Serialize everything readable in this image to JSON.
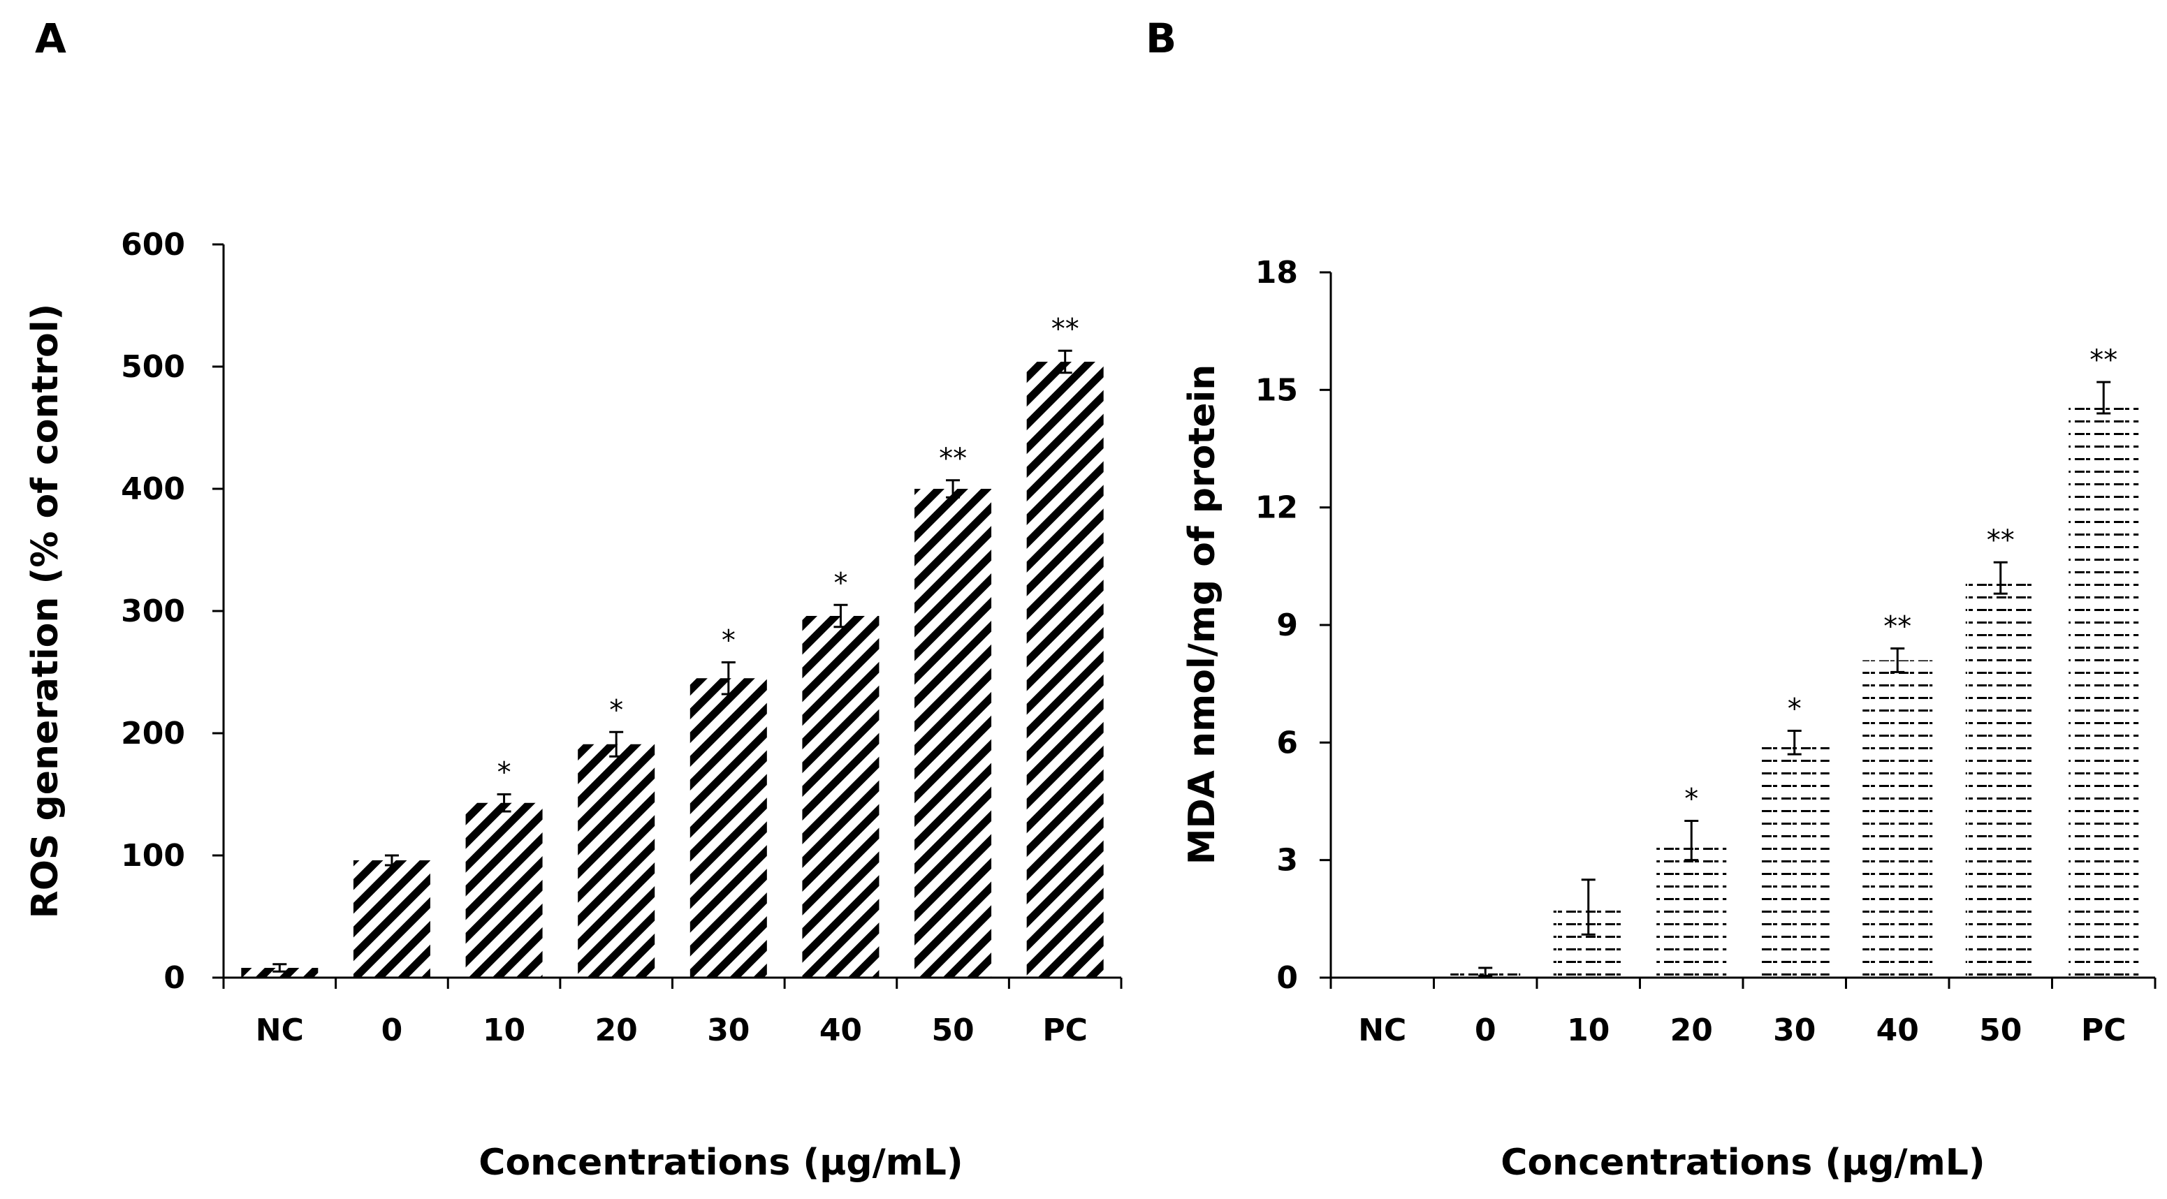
{
  "chart_data": [
    {
      "id": "A",
      "panel_label": "A",
      "type": "bar",
      "pattern": "diagonal",
      "title": "",
      "xlabel": "Concentrations (μg/mL)",
      "ylabel": "ROS generation (% of control)",
      "ylim": [
        0,
        600
      ],
      "yticks": [
        0,
        100,
        200,
        300,
        400,
        500,
        600
      ],
      "ytick_labels": [
        "0",
        "100",
        "200",
        "300",
        "400",
        "500",
        "600"
      ],
      "categories": [
        "NC",
        "0",
        "10",
        "20",
        "30",
        "40",
        "50",
        "PC"
      ],
      "values": [
        8,
        96,
        143,
        191,
        245,
        296,
        400,
        504
      ],
      "errors": [
        3,
        4,
        7,
        10,
        13,
        9,
        7,
        9
      ],
      "significance": [
        "",
        "",
        "*",
        "*",
        "*",
        "*",
        "**",
        "**"
      ]
    },
    {
      "id": "B",
      "panel_label": "B",
      "type": "bar",
      "pattern": "dashed-horizontal",
      "title": "",
      "xlabel": "Concentrations (μg/mL)",
      "ylabel": "MDA nmol/mg of protein",
      "ylim": [
        0,
        18
      ],
      "yticks": [
        0,
        3,
        6,
        9,
        12,
        15,
        18
      ],
      "ytick_labels": [
        "0",
        "3",
        "6",
        "9",
        "12",
        "15",
        "18"
      ],
      "categories": [
        "NC",
        "0",
        "10",
        "20",
        "30",
        "40",
        "50",
        "PC"
      ],
      "values": [
        0,
        0.15,
        1.8,
        3.5,
        6.0,
        8.1,
        10.2,
        14.8
      ],
      "errors": [
        0,
        0.1,
        0.7,
        0.5,
        0.3,
        0.3,
        0.4,
        0.4
      ],
      "significance": [
        "",
        "",
        "",
        "*",
        "*",
        "**",
        "**",
        "**"
      ]
    }
  ]
}
